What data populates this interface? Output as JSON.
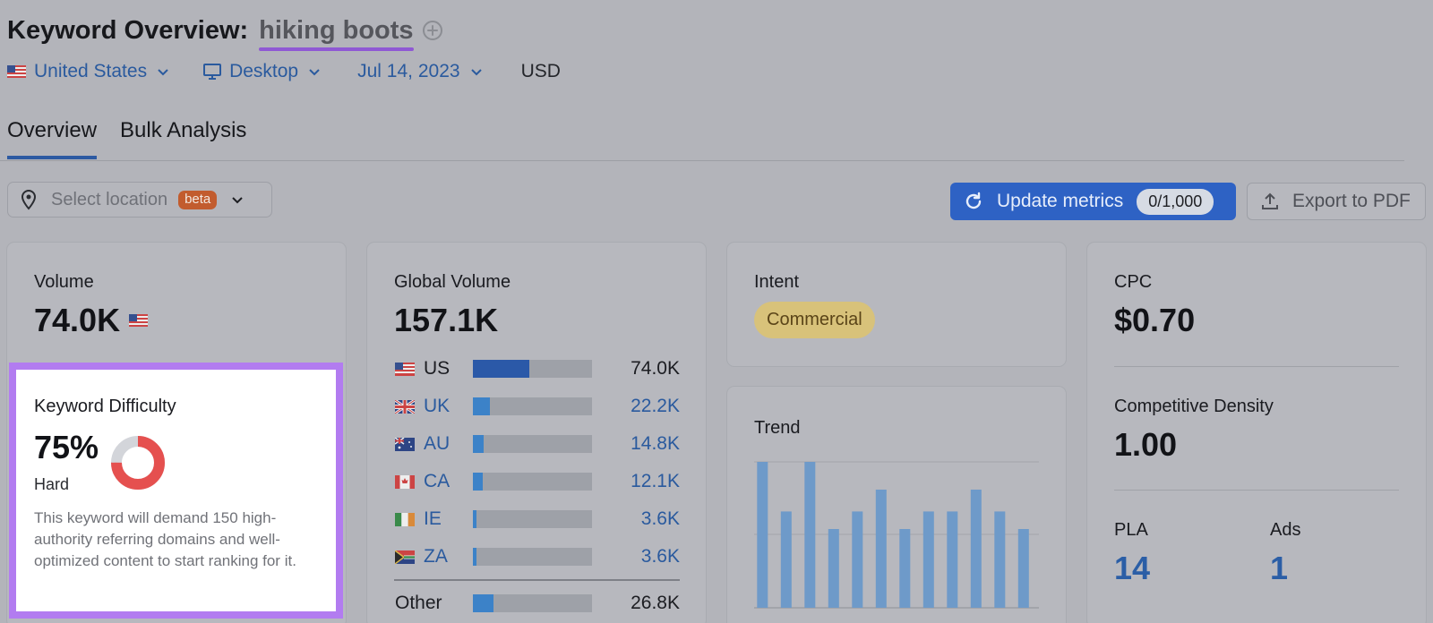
{
  "header": {
    "title_prefix": "Keyword Overview:",
    "keyword": "hiking boots",
    "icons": {
      "add": "plus-circle-icon"
    }
  },
  "filters": {
    "country": "United States",
    "device": "Desktop",
    "date": "Jul 14, 2023",
    "currency": "USD"
  },
  "tabs": [
    {
      "label": "Overview",
      "active": true
    },
    {
      "label": "Bulk Analysis",
      "active": false
    }
  ],
  "toolbar": {
    "location_placeholder": "Select location",
    "beta_badge": "beta",
    "update_label": "Update metrics",
    "update_counter": "0/1,000",
    "export_label": "Export to PDF"
  },
  "volume_card": {
    "label": "Volume",
    "value": "74.0K"
  },
  "kd_card": {
    "label": "Keyword Difficulty",
    "value": "75%",
    "level": "Hard",
    "percent": 75,
    "description": "This keyword will demand 150 high-authority referring domains and well-optimized content to start ranking for it."
  },
  "global_volume": {
    "label": "Global Volume",
    "value": "157.1K",
    "countries": [
      {
        "code": "US",
        "value": "74.0K",
        "share": 0.47
      },
      {
        "code": "UK",
        "value": "22.2K",
        "share": 0.14
      },
      {
        "code": "AU",
        "value": "14.8K",
        "share": 0.09
      },
      {
        "code": "CA",
        "value": "12.1K",
        "share": 0.08
      },
      {
        "code": "IE",
        "value": "3.6K",
        "share": 0.03
      },
      {
        "code": "ZA",
        "value": "3.6K",
        "share": 0.03
      }
    ],
    "other": {
      "label": "Other",
      "value": "26.8K",
      "share": 0.17
    }
  },
  "intent_card": {
    "label": "Intent",
    "badge": "Commercial",
    "badge_color": "#d8c27a"
  },
  "trend_card": {
    "label": "Trend",
    "bars": [
      1.0,
      0.66,
      1.0,
      0.54,
      0.66,
      0.81,
      0.54,
      0.66,
      0.66,
      0.81,
      0.66,
      0.54
    ]
  },
  "cpc_card": {
    "cpc_label": "CPC",
    "cpc_value": "$0.70",
    "density_label": "Competitive Density",
    "density_value": "1.00",
    "pla_label": "PLA",
    "pla_value": "14",
    "ads_label": "Ads",
    "ads_value": "1"
  },
  "colors": {
    "accent": "#2e62c4",
    "highlight": "#b27cf0",
    "kd_red": "#e5504f",
    "bar_blue": "#3c82c8"
  }
}
